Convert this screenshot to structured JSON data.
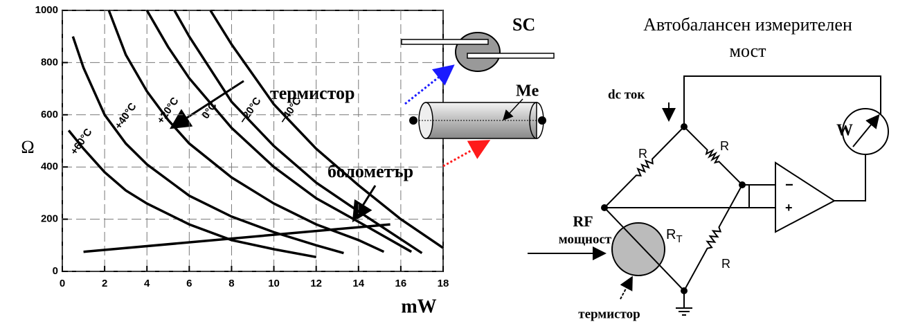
{
  "chart_data": {
    "type": "line",
    "x_label": "mW",
    "y_label": "Ω",
    "xlim": [
      0,
      18
    ],
    "ylim": [
      0,
      1000
    ],
    "xticks": [
      0,
      2,
      4,
      6,
      8,
      10,
      12,
      14,
      16,
      18
    ],
    "yticks": [
      0,
      200,
      400,
      600,
      800,
      1000
    ],
    "grid": true,
    "series": [
      {
        "name": "+60°C",
        "color": "#000000",
        "x": [
          0.3,
          1,
          2,
          3,
          4,
          6,
          8,
          10,
          12
        ],
        "values": [
          540,
          470,
          380,
          310,
          260,
          180,
          120,
          85,
          55
        ]
      },
      {
        "name": "+40°C",
        "color": "#000000",
        "x": [
          0.5,
          1,
          2,
          3,
          4,
          6,
          8,
          10,
          12,
          13.3
        ],
        "values": [
          900,
          780,
          600,
          490,
          410,
          290,
          210,
          150,
          100,
          70
        ]
      },
      {
        "name": "+20°C",
        "color": "#000000",
        "x": [
          2.2,
          3,
          4,
          5,
          6,
          8,
          10,
          12,
          14,
          15.2
        ],
        "values": [
          1000,
          830,
          690,
          580,
          490,
          360,
          260,
          180,
          120,
          75
        ]
      },
      {
        "name": "0°C",
        "color": "#000000",
        "x": [
          4,
          5,
          6,
          8,
          10,
          12,
          14,
          16.5
        ],
        "values": [
          1000,
          860,
          740,
          550,
          400,
          280,
          190,
          75
        ]
      },
      {
        "name": "−20°C",
        "color": "#000000",
        "x": [
          5.3,
          6,
          8,
          10,
          12,
          14,
          17
        ],
        "values": [
          1000,
          900,
          650,
          480,
          340,
          230,
          70
        ]
      },
      {
        "name": "−40°C",
        "color": "#000000",
        "x": [
          7,
          8,
          10,
          12,
          14,
          16,
          18
        ],
        "values": [
          1000,
          870,
          640,
          470,
          330,
          200,
          90
        ]
      },
      {
        "color": "#000000",
        "x": [
          1,
          15.5
        ],
        "values": [
          75,
          180
        ]
      }
    ],
    "annotations": {
      "thermistor": "термистор",
      "bolometer": "болометър"
    }
  },
  "diagram": {
    "sc_label": "SC",
    "me_label": "Me",
    "bridge": {
      "title": [
        "Автобалансен измерителен",
        "мост"
      ],
      "dc_label": "dc ток",
      "meter": "W",
      "resistors": [
        "R",
        "R",
        "R"
      ],
      "rt_label": "R",
      "rt_sub": "T",
      "rf": [
        "RF",
        "мощност"
      ],
      "thermistor": "термистор",
      "minus": "−",
      "plus": "+"
    }
  }
}
